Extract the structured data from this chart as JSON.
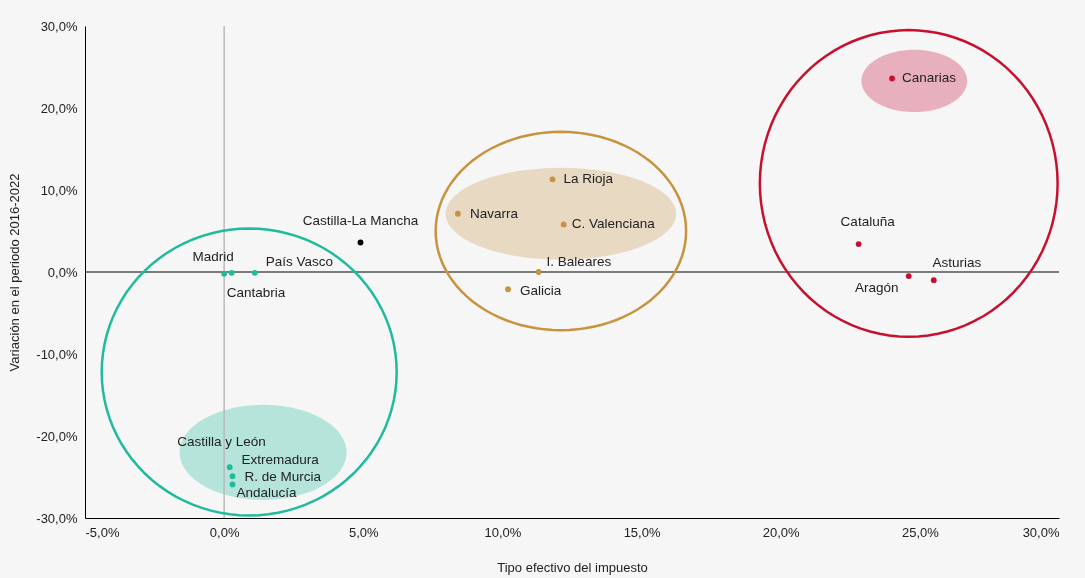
{
  "chart_data": {
    "type": "scatter",
    "xlabel": "Tipo efectivo del impuesto",
    "ylabel": "Variación en el periodo 2016-2022",
    "series": [
      {
        "color": "#1fbb9c",
        "x": [
          0.0,
          0.27,
          1.1,
          0.2,
          0.3,
          null,
          0.3
        ],
        "values": [
          -0.2,
          -0.1,
          -0.1,
          -23.8,
          -24.9,
          null,
          -25.9
        ]
      },
      {
        "color": "#000000",
        "x": [
          4.9
        ],
        "values": [
          3.6
        ]
      },
      {
        "color": "#c8923f",
        "x": [
          8.4,
          11.8,
          12.2,
          11.3,
          10.2
        ],
        "values": [
          7.1,
          11.3,
          5.8,
          0.0,
          -2.1
        ]
      },
      {
        "color": "#c8102e",
        "x": [
          24.0,
          22.8,
          24.6,
          25.5
        ],
        "values": [
          23.6,
          3.4,
          -0.5,
          -1.0
        ]
      }
    ],
    "annotations": [
      {
        "text": "Madrid",
        "x": 0.0,
        "y": -0.2
      },
      {
        "text": "Cantabria",
        "x": 0.27,
        "y": -0.1
      },
      {
        "text": "País Vasco",
        "x": 1.1,
        "y": -0.1
      },
      {
        "text": "Castilla y León",
        "x": 0.2,
        "y": -23.8
      },
      {
        "text": "Extremadura",
        "x": 0.3,
        "y": -24.9
      },
      {
        "text": "R. de Murcia",
        "x": 0.3,
        "y": -25.0
      },
      {
        "text": "Andalucía",
        "x": 0.3,
        "y": -25.9
      },
      {
        "text": "Castilla-La Mancha",
        "x": 4.9,
        "y": 3.6
      },
      {
        "text": "Navarra",
        "x": 8.4,
        "y": 7.1
      },
      {
        "text": "La Rioja",
        "x": 11.8,
        "y": 11.3
      },
      {
        "text": "C. Valenciana",
        "x": 12.2,
        "y": 5.8
      },
      {
        "text": "I. Baleares",
        "x": 11.3,
        "y": 0.0
      },
      {
        "text": "Galicia",
        "x": 10.2,
        "y": -2.1
      },
      {
        "text": "Canarias",
        "x": 24.0,
        "y": 23.6
      },
      {
        "text": "Cataluña",
        "x": 22.8,
        "y": 3.4
      },
      {
        "text": "Aragón",
        "x": 24.6,
        "y": -0.5
      },
      {
        "text": "Asturias",
        "x": 25.5,
        "y": -1.0
      }
    ],
    "xlim": [
      -5,
      30
    ],
    "xticks": [
      {
        "value": -5,
        "label": "-5,0%"
      },
      {
        "value": 0,
        "label": "0,0%"
      },
      {
        "value": 5,
        "label": "5,0%"
      },
      {
        "value": 10,
        "label": "10,0%"
      },
      {
        "value": 15,
        "label": "15,0%"
      },
      {
        "value": 20,
        "label": "20,0%"
      },
      {
        "value": 25,
        "label": "25,0%"
      },
      {
        "value": 30,
        "label": "30,0%"
      }
    ],
    "ylim": [
      -30,
      30
    ],
    "yticks": [
      {
        "value": -30,
        "label": "-30,0%"
      },
      {
        "value": -20,
        "label": "-20,0%"
      },
      {
        "value": -10,
        "label": "-10,0%"
      },
      {
        "value": 0,
        "label": "0,0%"
      },
      {
        "value": 10,
        "label": "10,0%"
      },
      {
        "value": 20,
        "label": "20,0%"
      },
      {
        "value": 30,
        "label": "30,0%"
      }
    ],
    "ref_lines": [
      {
        "axis": "x",
        "value": 0,
        "color": "#bbbbbb"
      },
      {
        "axis": "y",
        "value": 0,
        "color": "#000000"
      }
    ],
    "grid": false,
    "legend": false,
    "marker": "circle"
  }
}
